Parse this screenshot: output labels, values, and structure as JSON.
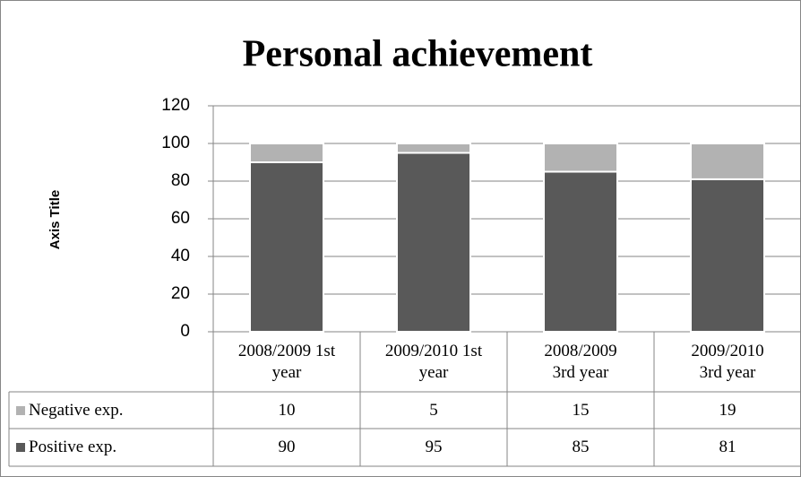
{
  "chart_data": {
    "type": "stacked_bar",
    "title": "Personal achievement",
    "y_label": "Axis Title",
    "categories": [
      "2008/2009 1st year",
      "2009/2010 1st year",
      "2008/2009 3rd year",
      "2009/2010 3rd year"
    ],
    "series": [
      {
        "name": "Negative exp.",
        "color": "#b2b2b2",
        "values": [
          10,
          5,
          15,
          19
        ]
      },
      {
        "name": "Positive exp.",
        "color": "#595959",
        "values": [
          90,
          95,
          85,
          81
        ]
      }
    ],
    "ylim": [
      0,
      120
    ],
    "yticks": [
      0,
      20,
      40,
      60,
      80,
      100,
      120
    ],
    "grid": true,
    "data_table": true
  }
}
